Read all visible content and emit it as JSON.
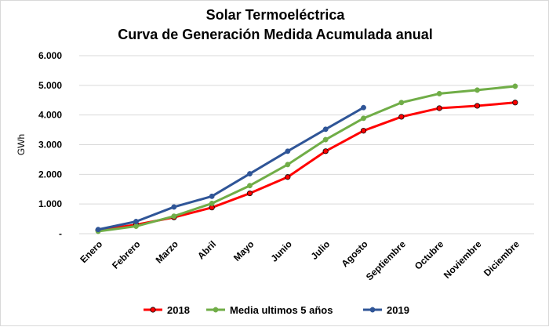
{
  "chart_data": {
    "type": "line",
    "title": "Solar Termoeléctrica",
    "subtitle": "Curva de Generación Medida Acumulada anual",
    "ylabel": "GWh",
    "xlabel": "",
    "ylim": [
      0,
      6000
    ],
    "y_ticks": [
      "-",
      "1.000",
      "2.000",
      "3.000",
      "4.000",
      "5.000",
      "6.000"
    ],
    "y_tick_values": [
      0,
      1000,
      2000,
      3000,
      4000,
      5000,
      6000
    ],
    "grid": true,
    "legend_position": "bottom",
    "categories": [
      "Enero",
      "Febrero",
      "Marzo",
      "Abril",
      "Mayo",
      "Junio",
      "Julio",
      "Agosto",
      "Septiembre",
      "Octubre",
      "Noviembre",
      "Diciembre"
    ],
    "series": [
      {
        "name": "2018",
        "color": "#ff0000",
        "values": [
          120,
          300,
          550,
          880,
          1360,
          1910,
          2780,
          3470,
          3940,
          4230,
          4310,
          4420
        ]
      },
      {
        "name": "Media ultimos 5 años",
        "color": "#70ad47",
        "values": [
          80,
          250,
          590,
          1020,
          1620,
          2330,
          3170,
          3890,
          4420,
          4720,
          4840,
          4970
        ]
      },
      {
        "name": "2019",
        "color": "#2f5597",
        "values": [
          140,
          410,
          900,
          1260,
          2020,
          2780,
          3520,
          4250,
          null,
          null,
          null,
          null
        ]
      }
    ]
  }
}
